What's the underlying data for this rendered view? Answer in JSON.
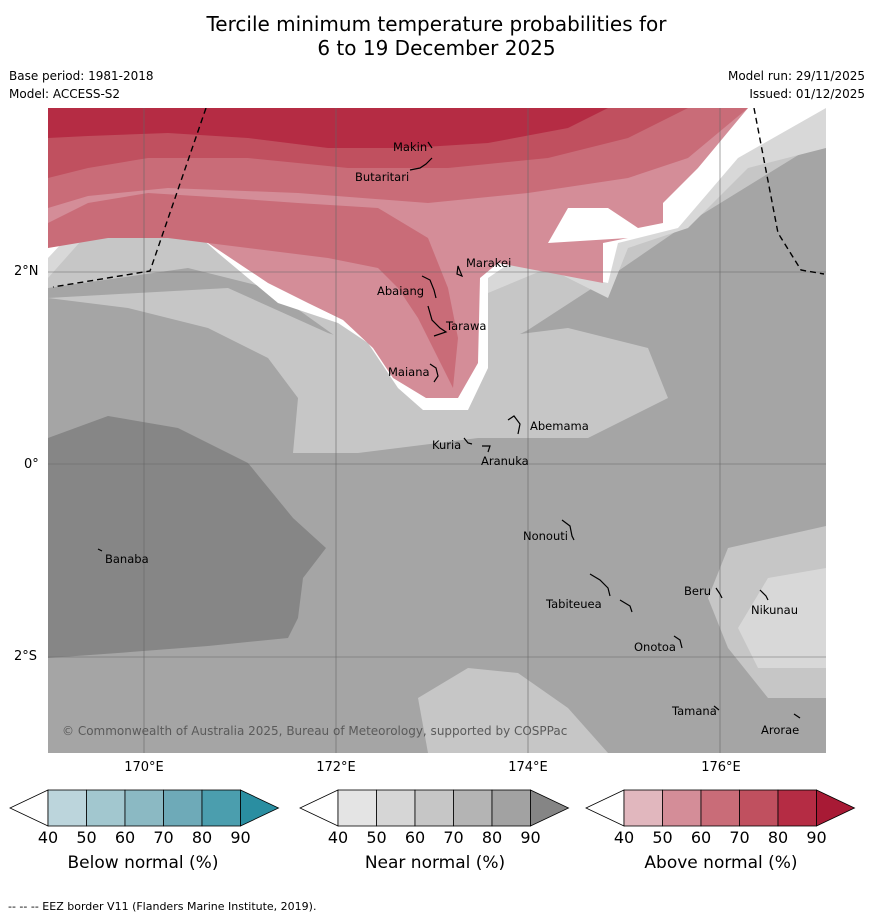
{
  "title_line1": "Tercile minimum temperature probabilities for",
  "title_line2": "6 to 19 December 2025",
  "base_period": "Base period: 1981-2018",
  "model": "Model: ACCESS-S2",
  "model_run": "Model run: 29/11/2025",
  "issued": "Issued: 01/12/2025",
  "lat_labels": [
    "2°N",
    "0°",
    "2°S"
  ],
  "lon_labels": [
    "170°E",
    "172°E",
    "174°E",
    "176°E"
  ],
  "places": [
    "Makin",
    "Butaritari",
    "Marakei",
    "Abaiang",
    "Tarawa",
    "Maiana",
    "Abemama",
    "Kuria",
    "Aranuka",
    "Nonouti",
    "Banaba",
    "Beru",
    "Nikunau",
    "Tabiteuea",
    "Onotoa",
    "Tamana",
    "Arorae"
  ],
  "copyright": "© Commonwealth of Australia 2025, Bureau of Meteorology, supported by COSPPac",
  "footnote": "-- -- -- EEZ border V11 (Flanders Marine Institute, 2019).",
  "colorbars": [
    {
      "label": "Below normal (%)",
      "ticks": [
        "40",
        "50",
        "60",
        "70",
        "80",
        "90"
      ],
      "colors": [
        "#ffffff",
        "#bcd5dc",
        "#a2c7cf",
        "#8bb9c3",
        "#6eaab8",
        "#4b9eae",
        "#2a8ea1"
      ]
    },
    {
      "label": "Near normal (%)",
      "ticks": [
        "40",
        "50",
        "60",
        "70",
        "80",
        "90"
      ],
      "colors": [
        "#ffffff",
        "#e4e4e4",
        "#d6d6d6",
        "#c6c6c6",
        "#b4b4b4",
        "#a2a2a2",
        "#858585"
      ]
    },
    {
      "label": "Above normal (%)",
      "ticks": [
        "40",
        "50",
        "60",
        "70",
        "80",
        "90"
      ],
      "colors": [
        "#ffffff",
        "#e1b7be",
        "#d48d98",
        "#c96c78",
        "#c0505f",
        "#b52c44",
        "#a81a35"
      ]
    }
  ]
}
